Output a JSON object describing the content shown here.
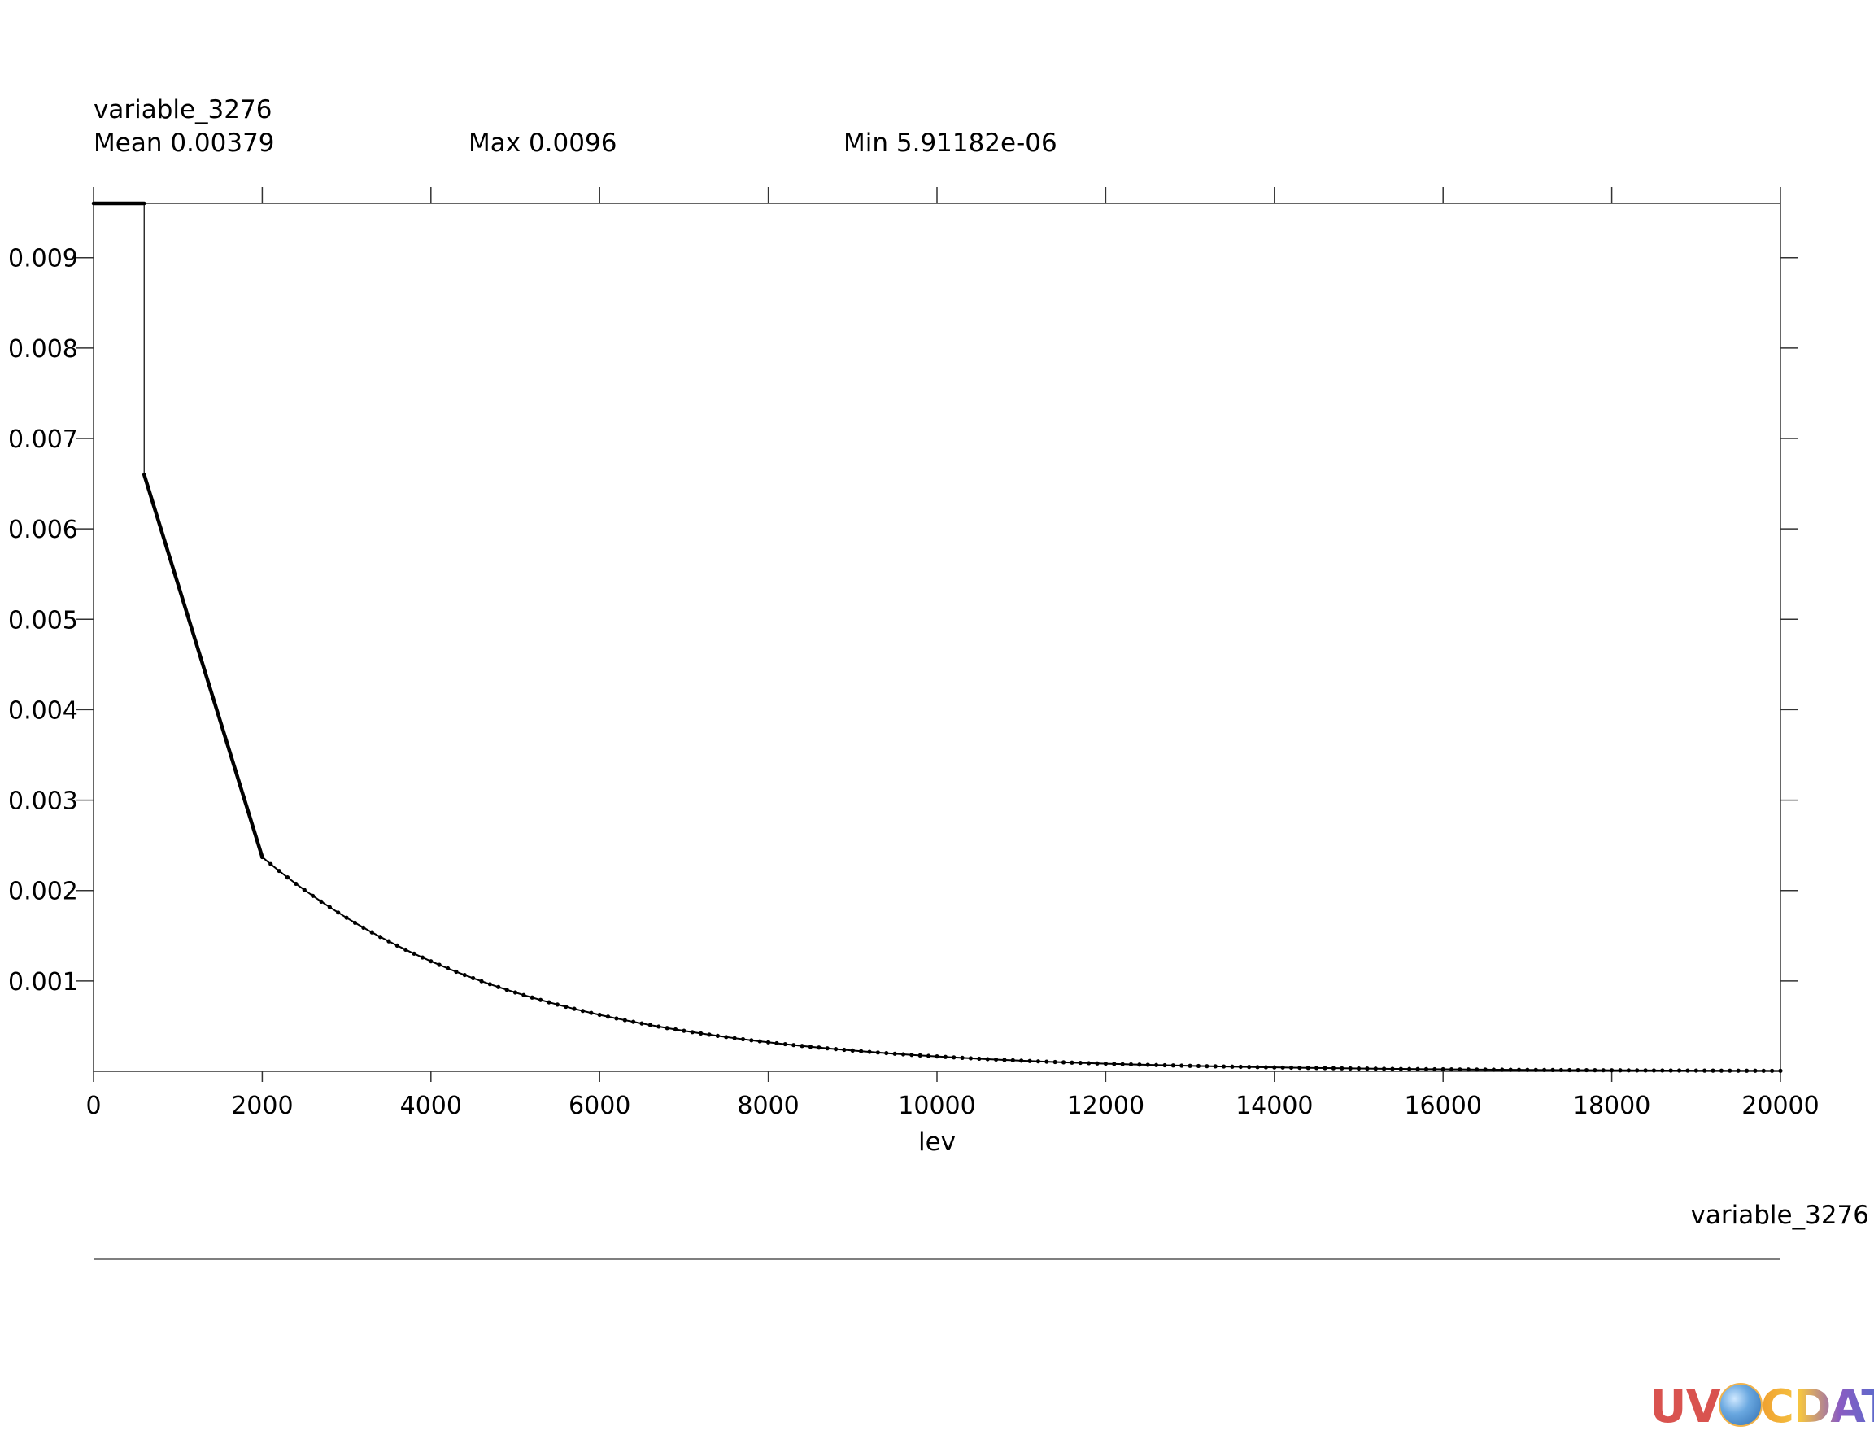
{
  "chart_data": {
    "type": "line",
    "variable_name": "variable_3276",
    "stats": {
      "mean_text": "Mean 0.00379",
      "max_text": "Max 0.0096",
      "min_text": "Min 5.91182e-06"
    },
    "xlabel": "lev",
    "ylabel": "",
    "legend_label": "variable_3276",
    "xlim": [
      0,
      20000
    ],
    "ylim": [
      0,
      0.0096
    ],
    "x_ticks": [
      0,
      2000,
      4000,
      6000,
      8000,
      10000,
      12000,
      14000,
      16000,
      18000,
      20000
    ],
    "x_tick_labels": [
      "0",
      "2000",
      "4000",
      "6000",
      "8000",
      "10000",
      "12000",
      "14000",
      "16000",
      "18000",
      "20000"
    ],
    "y_ticks": [
      0.001,
      0.002,
      0.003,
      0.004,
      0.005,
      0.006,
      0.007,
      0.008,
      0.009
    ],
    "y_tick_labels": [
      "0.001",
      "0.002",
      "0.003",
      "0.004",
      "0.005",
      "0.006",
      "0.007",
      "0.008",
      "0.009"
    ],
    "series": [
      {
        "color": "#000000",
        "segments": [
          {
            "style": "solid",
            "x": [
              0,
              600
            ],
            "y": [
              0.0096,
              0.0096
            ]
          },
          {
            "style": "thin",
            "x": [
              600,
              600
            ],
            "y": [
              0.0096,
              0.0066
            ]
          },
          {
            "style": "solid",
            "x": [
              600,
              2000
            ],
            "y": [
              0.0066,
              0.00237
            ]
          },
          {
            "style": "dotted-decay",
            "x_start": 2000,
            "x_end": 20000,
            "step": 100,
            "y_start": 0.00237,
            "y_end": 5.91182e-06
          }
        ]
      }
    ]
  },
  "logo": {
    "part1": "UV",
    "part2": "CDAT"
  }
}
